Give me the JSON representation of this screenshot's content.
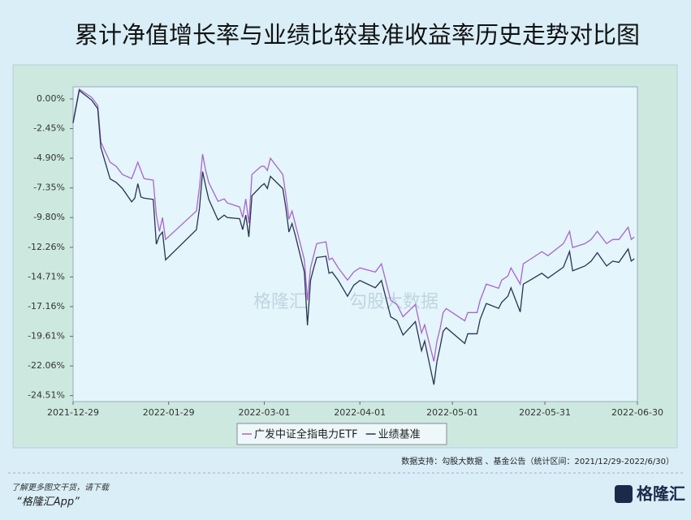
{
  "chart_data": {
    "type": "line",
    "title": "累计净值增长率与业绩比较基准收益率历史走势对比图",
    "x": [
      "2021-12-29",
      "2021-12-31",
      "2022-01-04",
      "2022-01-06",
      "2022-01-07",
      "2022-01-10",
      "2022-01-12",
      "2022-01-14",
      "2022-01-17",
      "2022-01-18",
      "2022-01-19",
      "2022-01-20",
      "2022-01-21",
      "2022-01-24",
      "2022-01-25",
      "2022-01-26",
      "2022-01-27",
      "2022-01-28",
      "2022-02-07",
      "2022-02-08",
      "2022-02-09",
      "2022-02-10",
      "2022-02-11",
      "2022-02-14",
      "2022-02-16",
      "2022-02-17",
      "2022-02-21",
      "2022-02-22",
      "2022-02-23",
      "2022-02-24",
      "2022-02-25",
      "2022-02-28",
      "2022-03-01",
      "2022-03-02",
      "2022-03-03",
      "2022-03-07",
      "2022-03-08",
      "2022-03-09",
      "2022-03-10",
      "2022-03-11",
      "2022-03-14",
      "2022-03-15",
      "2022-03-16",
      "2022-03-17",
      "2022-03-18",
      "2022-03-21",
      "2022-03-22",
      "2022-03-23",
      "2022-03-25",
      "2022-03-28",
      "2022-03-30",
      "2022-04-01",
      "2022-04-06",
      "2022-04-08",
      "2022-04-11",
      "2022-04-13",
      "2022-04-15",
      "2022-04-19",
      "2022-04-21",
      "2022-04-22",
      "2022-04-25",
      "2022-04-26",
      "2022-04-27",
      "2022-04-28",
      "2022-04-29",
      "2022-05-05",
      "2022-05-06",
      "2022-05-09",
      "2022-05-10",
      "2022-05-12",
      "2022-05-16",
      "2022-05-17",
      "2022-05-19",
      "2022-05-20",
      "2022-05-23",
      "2022-05-24",
      "2022-05-26",
      "2022-05-30",
      "2022-06-01",
      "2022-06-06",
      "2022-06-08",
      "2022-06-09",
      "2022-06-13",
      "2022-06-15",
      "2022-06-17",
      "2022-06-20",
      "2022-06-22",
      "2022-06-24",
      "2022-06-27",
      "2022-06-28",
      "2022-06-29"
    ],
    "series": [
      {
        "name": "广发中证全指电力ETF",
        "color": "#a866c9",
        "values": [
          -1.88,
          0.81,
          0.13,
          -0.54,
          -3.56,
          -5.23,
          -5.57,
          -6.24,
          -6.58,
          -5.91,
          -5.23,
          -5.91,
          -6.58,
          -6.71,
          -9.6,
          -10.94,
          -9.8,
          -11.61,
          -9.26,
          -7.25,
          -4.56,
          -5.91,
          -6.91,
          -8.46,
          -8.26,
          -8.59,
          -8.93,
          -9.8,
          -8.26,
          -10.27,
          -6.24,
          -5.57,
          -5.57,
          -5.91,
          -4.9,
          -6.24,
          -7.92,
          -9.93,
          -9.26,
          -10.27,
          -13.29,
          -16.64,
          -13.96,
          -12.95,
          -11.95,
          -11.81,
          -13.29,
          -13.15,
          -13.96,
          -14.97,
          -14.3,
          -13.96,
          -14.3,
          -13.62,
          -16.64,
          -16.98,
          -17.99,
          -16.98,
          -19.33,
          -18.66,
          -21.68,
          -20.0,
          -18.99,
          -17.65,
          -17.32,
          -18.33,
          -17.65,
          -17.65,
          -16.64,
          -15.3,
          -15.64,
          -14.97,
          -14.63,
          -13.96,
          -15.3,
          -13.62,
          -13.29,
          -12.62,
          -12.95,
          -11.95,
          -10.94,
          -12.28,
          -11.95,
          -11.61,
          -10.94,
          -11.95,
          -11.61,
          -11.61,
          -10.6,
          -11.61,
          -11.41
        ]
      },
      {
        "name": "业绩基准",
        "color": "#2a3352",
        "values": [
          -2.0,
          0.7,
          -0.1,
          -0.8,
          -4.0,
          -6.6,
          -6.9,
          -7.4,
          -8.5,
          -8.2,
          -7.0,
          -8.1,
          -8.2,
          -8.3,
          -12.0,
          -11.3,
          -11.0,
          -13.3,
          -10.8,
          -9.0,
          -6.0,
          -7.2,
          -8.3,
          -10.0,
          -9.6,
          -9.8,
          -9.9,
          -10.8,
          -9.6,
          -11.4,
          -8.0,
          -7.2,
          -7.0,
          -7.4,
          -6.4,
          -7.4,
          -9.0,
          -11.0,
          -10.3,
          -11.2,
          -14.3,
          -18.7,
          -15.0,
          -14.0,
          -13.1,
          -13.0,
          -14.4,
          -14.3,
          -15.0,
          -16.3,
          -15.4,
          -15.0,
          -15.6,
          -15.0,
          -18.0,
          -18.3,
          -19.5,
          -18.4,
          -20.8,
          -20.0,
          -23.6,
          -21.7,
          -20.5,
          -19.2,
          -18.9,
          -20.2,
          -19.4,
          -19.4,
          -18.2,
          -16.9,
          -17.3,
          -16.8,
          -16.3,
          -15.6,
          -17.6,
          -15.3,
          -15.0,
          -14.4,
          -14.8,
          -13.9,
          -12.6,
          -14.2,
          -13.8,
          -13.4,
          -12.7,
          -13.8,
          -13.4,
          -13.5,
          -12.4,
          -13.4,
          -13.2
        ]
      }
    ],
    "xlim": [
      "2021-12-29",
      "2022-06-30"
    ],
    "xticks": [
      "2021-12-29",
      "2022-01-29",
      "2022-03-01",
      "2022-04-01",
      "2022-05-01",
      "2022-05-31",
      "2022-06-30"
    ],
    "ylim": [
      -25.0,
      1.0
    ],
    "yticks": [
      {
        "value": 0,
        "label": "0.00%"
      },
      {
        "value": -2.45,
        "label": "-2.45%"
      },
      {
        "value": -4.9,
        "label": "-4.90%"
      },
      {
        "value": -7.35,
        "label": "-7.35%"
      },
      {
        "value": -9.8,
        "label": "-9.80%"
      },
      {
        "value": -12.26,
        "label": "-12.26%"
      },
      {
        "value": -14.71,
        "label": "-14.71%"
      },
      {
        "value": -17.16,
        "label": "-17.16%"
      },
      {
        "value": -19.61,
        "label": "-19.61%"
      },
      {
        "value": -22.06,
        "label": "-22.06%"
      },
      {
        "value": -24.51,
        "label": "-24.51%"
      }
    ],
    "grid": false,
    "legend": "bottom",
    "watermark": [
      "格隆汇",
      "勾股大数据"
    ],
    "source": "数据支持：勾股大数据 、基金公告（统计区间：2021/12/29-2022/6/30）"
  },
  "footer": {
    "line1": "了解更多图文干货，请下载",
    "line2": "“格隆汇App”",
    "logo": "格隆汇"
  }
}
